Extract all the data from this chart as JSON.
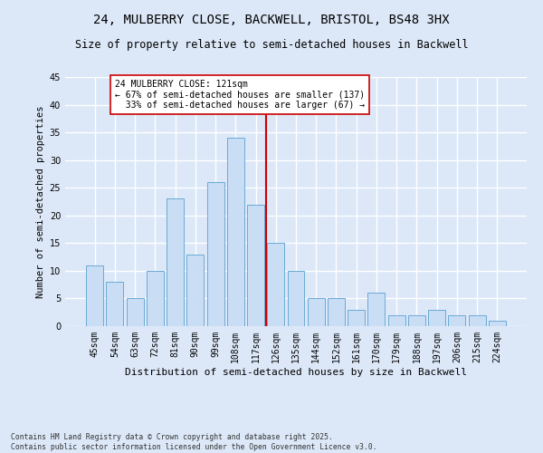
{
  "title1": "24, MULBERRY CLOSE, BACKWELL, BRISTOL, BS48 3HX",
  "title2": "Size of property relative to semi-detached houses in Backwell",
  "xlabel": "Distribution of semi-detached houses by size in Backwell",
  "ylabel": "Number of semi-detached properties",
  "categories": [
    "45sqm",
    "54sqm",
    "63sqm",
    "72sqm",
    "81sqm",
    "90sqm",
    "99sqm",
    "108sqm",
    "117sqm",
    "126sqm",
    "135sqm",
    "144sqm",
    "152sqm",
    "161sqm",
    "170sqm",
    "179sqm",
    "188sqm",
    "197sqm",
    "206sqm",
    "215sqm",
    "224sqm"
  ],
  "values": [
    11,
    8,
    5,
    10,
    23,
    13,
    26,
    34,
    22,
    15,
    10,
    5,
    5,
    3,
    6,
    2,
    2,
    3,
    2,
    2,
    1
  ],
  "bar_color": "#c9ddf5",
  "bar_edge_color": "#6aaad4",
  "subject_line_color": "#cc0000",
  "annotation_text": "24 MULBERRY CLOSE: 121sqm\n← 67% of semi-detached houses are smaller (137)\n  33% of semi-detached houses are larger (67) →",
  "annotation_box_color": "#cc0000",
  "annotation_fill": "#ffffff",
  "ylim": [
    0,
    45
  ],
  "yticks": [
    0,
    5,
    10,
    15,
    20,
    25,
    30,
    35,
    40,
    45
  ],
  "background_color": "#dce8f8",
  "grid_color": "#ffffff",
  "footer": "Contains HM Land Registry data © Crown copyright and database right 2025.\nContains public sector information licensed under the Open Government Licence v3.0.",
  "title1_fontsize": 10,
  "title2_fontsize": 8.5,
  "xlabel_fontsize": 8,
  "ylabel_fontsize": 7.5,
  "tick_fontsize": 7,
  "annotation_fontsize": 7,
  "footer_fontsize": 5.8
}
